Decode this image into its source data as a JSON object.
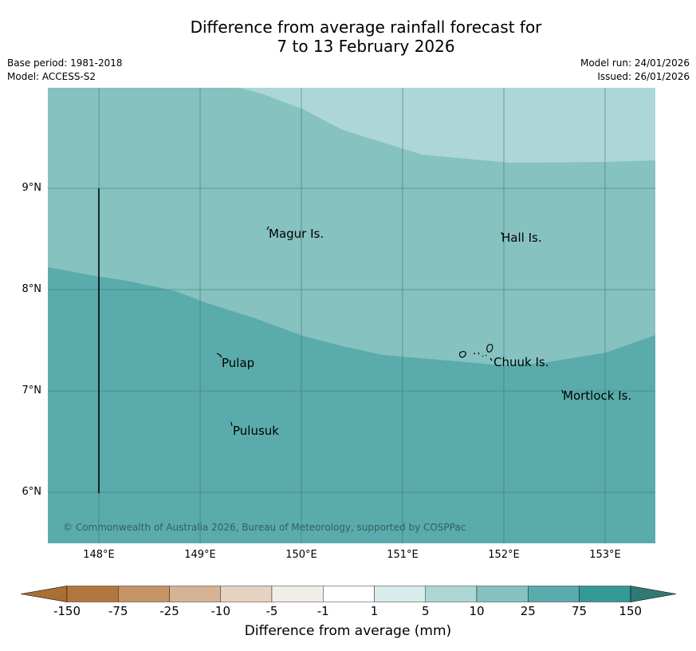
{
  "title": {
    "line1": "Difference from average rainfall forecast for",
    "line2": "7 to 13 February 2026"
  },
  "meta": {
    "base_period": "Base period: 1981-2018",
    "model": "Model: ACCESS-S2",
    "model_run": "Model run: 24/01/2026",
    "issued": "Issued: 26/01/2026"
  },
  "map": {
    "lat_labels": [
      "9°N",
      "8°N",
      "7°N",
      "6°N"
    ],
    "lon_labels": [
      "148°E",
      "149°E",
      "150°E",
      "151°E",
      "152°E",
      "153°E"
    ],
    "places": [
      "Magur Is.",
      "Hall Is.",
      "Pulap",
      "Chuuk Is.",
      "Mortlock Is.",
      "Pulusuk"
    ],
    "copyright": "© Commonwealth of Australia 2026, Bureau of Meteorology, supported by COSPPac",
    "region_colors": {
      "band_10_25": "#85c2c0",
      "band_5_10": "#acd7d6",
      "band_25_75": "#5aabab"
    }
  },
  "colorbar": {
    "label": "Difference from average (mm)",
    "ticks": [
      "-150",
      "-75",
      "-25",
      "-10",
      "-5",
      "-1",
      "1",
      "5",
      "10",
      "25",
      "75",
      "150"
    ],
    "colors": [
      "#a96f35",
      "#b2773e",
      "#c49466",
      "#d5b394",
      "#e5d2c1",
      "#f1eeea",
      "#ffffff",
      "#d8eceb",
      "#acd7d6",
      "#85c2c0",
      "#5aabab",
      "#349996",
      "#2f7a77"
    ]
  }
}
